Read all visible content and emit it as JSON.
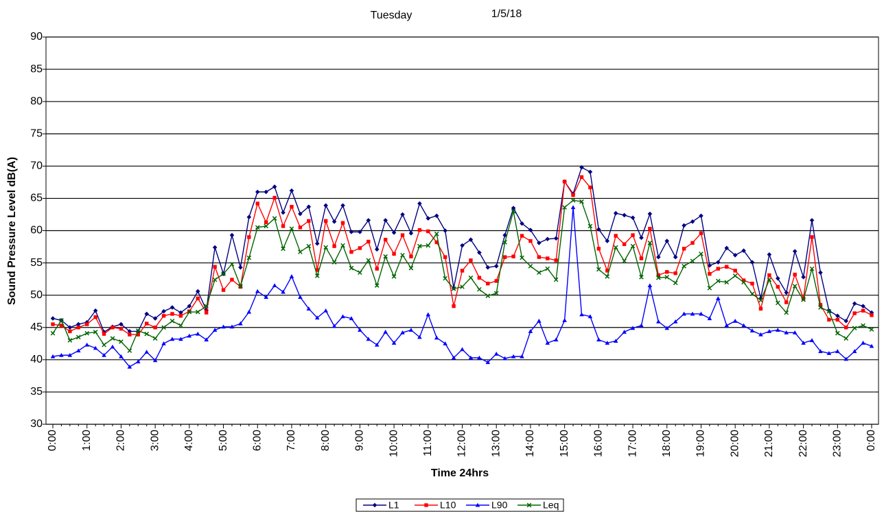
{
  "chart_data": {
    "type": "line",
    "title": "Tuesday",
    "date": "1/5/18",
    "y_label": "Sound Pressure Level dB(A)",
    "x_label": "Time 24hrs",
    "ylim": [
      30,
      90
    ],
    "yticks": [
      30,
      35,
      40,
      45,
      50,
      55,
      60,
      65,
      70,
      75,
      80,
      85,
      90
    ],
    "grid": true,
    "legend": "bottom",
    "categories": [
      "0:00",
      null,
      null,
      null,
      "1:00",
      null,
      null,
      null,
      "2:00",
      null,
      null,
      null,
      "3:00",
      null,
      null,
      null,
      "4:00",
      null,
      null,
      null,
      "5:00",
      null,
      null,
      null,
      "6:00",
      null,
      null,
      null,
      "7:00",
      null,
      null,
      null,
      "8:00",
      null,
      null,
      null,
      "9:00",
      null,
      null,
      null,
      "10:00",
      null,
      null,
      null,
      "11:00",
      null,
      null,
      null,
      "12:00",
      null,
      null,
      null,
      "13:00",
      null,
      null,
      null,
      "14:00",
      null,
      null,
      null,
      "15:00",
      null,
      null,
      null,
      "16:00",
      null,
      null,
      null,
      "17:00",
      null,
      null,
      null,
      "18:00",
      null,
      null,
      null,
      "19:00",
      null,
      null,
      null,
      "20:00",
      null,
      null,
      null,
      "21:00",
      null,
      null,
      null,
      "22:00",
      null,
      null,
      null,
      "23:00",
      null,
      null,
      null,
      "0:00"
    ],
    "series": [
      {
        "name": "L1",
        "color": "#000080",
        "marker": "diamond",
        "values": [
          46.4,
          46.1,
          45.0,
          45.5,
          45.8,
          47.6,
          44.3,
          45.1,
          45.5,
          44.4,
          44.4,
          47.1,
          46.4,
          47.5,
          48.1,
          47.3,
          48.3,
          50.6,
          47.7,
          57.4,
          53.3,
          59.3,
          54.3,
          62.1,
          66.0,
          66.0,
          66.8,
          62.8,
          66.2,
          62.6,
          63.7,
          58.0,
          63.9,
          61.4,
          63.9,
          59.8,
          59.8,
          61.6,
          57.1,
          61.6,
          59.7,
          62.5,
          59.6,
          64.2,
          61.9,
          62.3,
          60.0,
          51.1,
          57.7,
          58.6,
          56.6,
          54.3,
          54.5,
          59.3,
          63.5,
          61.1,
          60.1,
          58.1,
          58.7,
          58.8,
          67.6,
          65.7,
          69.8,
          69.1,
          60.2,
          58.4,
          62.7,
          62.4,
          62.0,
          58.9,
          62.6,
          55.9,
          58.4,
          55.9,
          60.8,
          61.4,
          62.3,
          54.6,
          55.1,
          57.3,
          56.2,
          56.9,
          55.1,
          49.5,
          56.3,
          52.6,
          50.4,
          56.8,
          52.8,
          61.6,
          53.5,
          47.6,
          46.8,
          46.0,
          48.7,
          48.3,
          47.3
        ]
      },
      {
        "name": "L10",
        "color": "#ff0000",
        "marker": "square",
        "values": [
          45.5,
          45.3,
          44.4,
          45.0,
          45.5,
          46.6,
          44.0,
          45.0,
          44.8,
          43.9,
          43.9,
          45.6,
          45.0,
          46.8,
          47.1,
          46.8,
          47.5,
          49.5,
          47.3,
          54.4,
          50.8,
          52.4,
          51.3,
          59.0,
          64.2,
          61.3,
          65.1,
          60.7,
          63.7,
          60.5,
          61.5,
          53.9,
          61.5,
          57.6,
          61.2,
          56.7,
          57.3,
          58.3,
          54.1,
          58.6,
          56.4,
          59.3,
          56.0,
          60.1,
          59.9,
          58.2,
          55.9,
          48.3,
          53.8,
          55.4,
          52.7,
          51.8,
          52.2,
          55.9,
          56.0,
          59.2,
          58.4,
          55.9,
          55.7,
          55.4,
          67.6,
          65.5,
          68.3,
          66.7,
          57.2,
          53.8,
          59.2,
          57.9,
          59.3,
          55.7,
          60.3,
          53.1,
          53.6,
          53.4,
          57.2,
          58.1,
          59.6,
          53.3,
          54.1,
          54.4,
          53.8,
          52.3,
          51.8,
          47.9,
          53.1,
          51.3,
          48.9,
          53.2,
          49.5,
          59.0,
          48.5,
          46.2,
          46.2,
          45.0,
          47.2,
          47.6,
          46.9
        ]
      },
      {
        "name": "L90",
        "color": "#0000ff",
        "marker": "triangle",
        "values": [
          40.5,
          40.7,
          40.7,
          41.4,
          42.3,
          41.8,
          40.7,
          42.0,
          40.5,
          38.9,
          39.7,
          41.2,
          39.9,
          42.5,
          43.2,
          43.2,
          43.7,
          44.0,
          43.1,
          44.6,
          45.1,
          45.1,
          45.6,
          47.4,
          50.6,
          49.7,
          51.5,
          50.5,
          52.9,
          49.7,
          47.9,
          46.5,
          47.6,
          45.2,
          46.7,
          46.4,
          44.6,
          43.2,
          42.3,
          44.3,
          42.6,
          44.2,
          44.6,
          43.5,
          47.0,
          43.4,
          42.5,
          40.3,
          41.6,
          40.3,
          40.3,
          39.6,
          40.9,
          40.2,
          40.5,
          40.5,
          44.4,
          46.0,
          42.6,
          43.1,
          46.1,
          63.6,
          47.0,
          46.7,
          43.1,
          42.6,
          42.9,
          44.3,
          44.9,
          45.3,
          51.5,
          45.9,
          44.9,
          45.9,
          47.1,
          47.1,
          47.1,
          46.4,
          49.5,
          45.3,
          46.0,
          45.3,
          44.5,
          43.9,
          44.4,
          44.6,
          44.2,
          44.2,
          42.6,
          43.0,
          41.3,
          41.0,
          41.3,
          40.1,
          41.3,
          42.6,
          42.1
        ]
      },
      {
        "name": "Leq",
        "color": "#006400",
        "marker": "x",
        "values": [
          44.1,
          46.1,
          43.0,
          43.5,
          44.1,
          44.3,
          42.3,
          43.3,
          42.8,
          41.4,
          44.5,
          44.0,
          43.3,
          45.0,
          46.0,
          45.3,
          47.4,
          47.4,
          48.3,
          52.4,
          53.3,
          54.8,
          51.4,
          55.8,
          60.5,
          60.7,
          61.9,
          57.2,
          60.3,
          56.7,
          57.6,
          53.0,
          57.4,
          55.1,
          57.7,
          54.2,
          53.5,
          55.4,
          51.5,
          56.0,
          52.9,
          56.2,
          54.2,
          57.6,
          57.7,
          59.5,
          52.6,
          51.0,
          51.3,
          52.7,
          50.9,
          49.9,
          50.3,
          58.2,
          63.0,
          55.8,
          54.5,
          53.5,
          54.1,
          52.4,
          63.6,
          64.7,
          64.5,
          60.7,
          54.0,
          52.9,
          57.4,
          55.3,
          57.6,
          52.8,
          58.1,
          52.7,
          52.8,
          51.9,
          54.5,
          55.3,
          56.4,
          51.1,
          52.2,
          52.0,
          53.0,
          52.0,
          50.2,
          49.2,
          52.4,
          48.8,
          47.3,
          51.4,
          49.3,
          54.1,
          48.1,
          47.5,
          44.1,
          43.3,
          44.9,
          45.3,
          44.7
        ]
      }
    ]
  }
}
